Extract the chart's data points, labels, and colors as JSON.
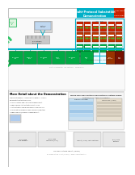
{
  "title_bg": "#00b0c8",
  "title_text_color": "#ffffff",
  "red_tag_bg": "#cc2200",
  "bg_color": "#ffffff",
  "accent_green": "#00aa44",
  "accent_cyan": "#00b0c8",
  "accent_red": "#cc2200",
  "accent_orange": "#ff8800",
  "accent_blue": "#0055aa",
  "light_gray": "#f0f0f0",
  "dark_gray": "#333333",
  "medium_gray": "#999999",
  "green_box_fill": "#00aa44",
  "ied_red": "#dd2200",
  "ied_brown": "#994400",
  "outer_border": "#aaaaaa",
  "cyan_border": "#00b0c8",
  "green_curve": "#00bb44",
  "section_sep": "#cccccc",
  "bottom_box_fill": "#e8e8e8",
  "screen_fill": "#c8e0f0",
  "detail_header_color": "#000000",
  "title_line1": "Multi-Protocol Substation",
  "title_line2": "Demonstration",
  "red_tag1": "DNP3 Key Manager",
  "red_tag2": "DNP3 Forge",
  "mid_title": "More Detail about the Demonstration",
  "right_header": "Which Dyn Free Protocol and Protocol Testing Allows",
  "right_sub": "Complete/Conformance cross-section"
}
